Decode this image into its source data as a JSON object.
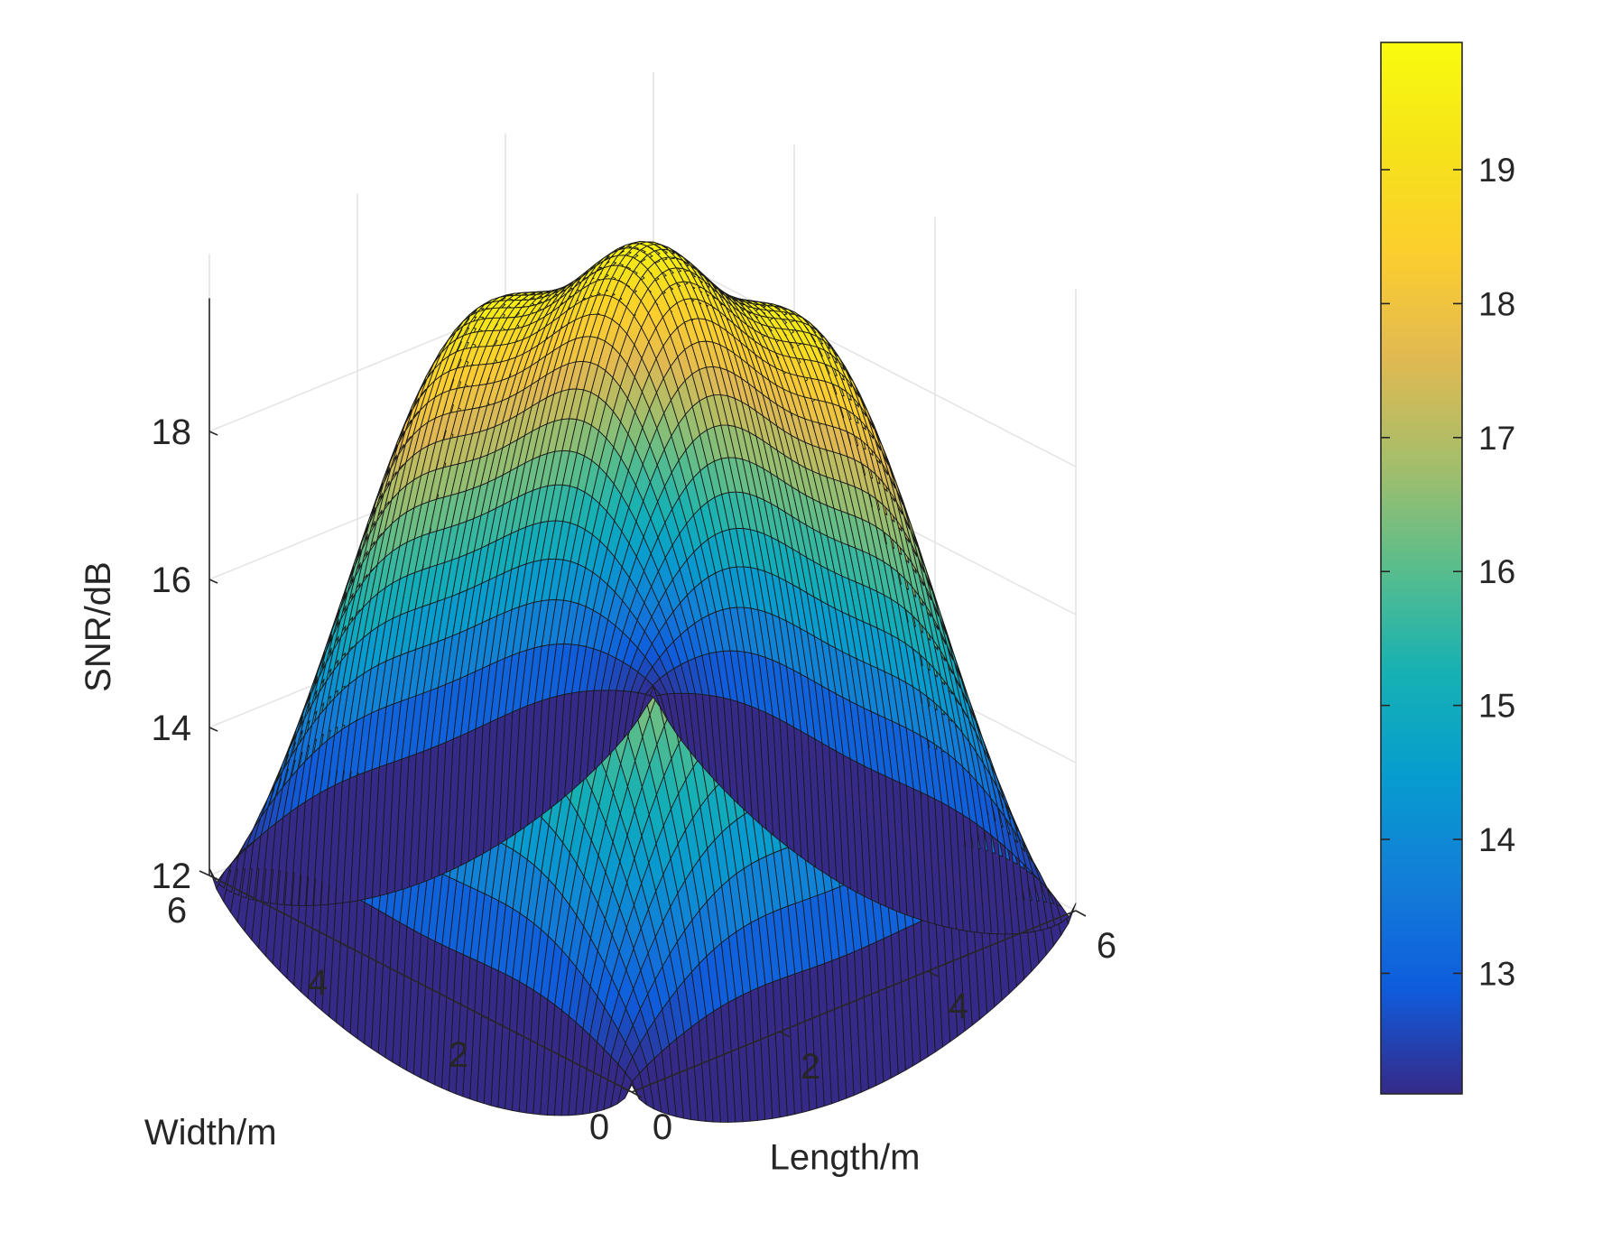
{
  "chart_data": {
    "type": "surface",
    "title": "",
    "xlabel": "Length/m",
    "ylabel": "Width/m",
    "zlabel": "SNR/dB",
    "xlim": [
      0,
      6
    ],
    "ylim": [
      0,
      6
    ],
    "zlim": [
      12,
      20
    ],
    "x_ticks": [
      "0",
      "2",
      "4",
      "6"
    ],
    "y_ticks": [
      "0",
      "2",
      "4",
      "6"
    ],
    "z_ticks": [
      "12",
      "14",
      "16",
      "18"
    ],
    "colorbar": {
      "range": [
        12.1,
        19.95
      ],
      "ticks": [
        "13",
        "14",
        "15",
        "16",
        "17",
        "18",
        "19"
      ]
    },
    "colormap": "parula",
    "grid": true,
    "contour_projection": true,
    "surface": {
      "x_range": [
        0,
        6
      ],
      "y_range": [
        0,
        6
      ],
      "grid_points": 61,
      "peaks": [
        {
          "x": 1.5,
          "y": 1.5,
          "z": 19.1
        },
        {
          "x": 1.5,
          "y": 3.0,
          "z": 19.2
        },
        {
          "x": 1.5,
          "y": 4.5,
          "z": 19.0
        },
        {
          "x": 3.0,
          "y": 1.5,
          "z": 19.3
        },
        {
          "x": 3.0,
          "y": 3.0,
          "z": 19.9
        },
        {
          "x": 3.0,
          "y": 4.5,
          "z": 19.3
        },
        {
          "x": 4.5,
          "y": 1.5,
          "z": 19.1
        },
        {
          "x": 4.5,
          "y": 3.0,
          "z": 19.2
        },
        {
          "x": 4.5,
          "y": 4.5,
          "z": 19.1
        }
      ],
      "edge_midpoint_z": 14.6,
      "edge_low_z": 13.8,
      "corner_z": 12.1
    }
  }
}
